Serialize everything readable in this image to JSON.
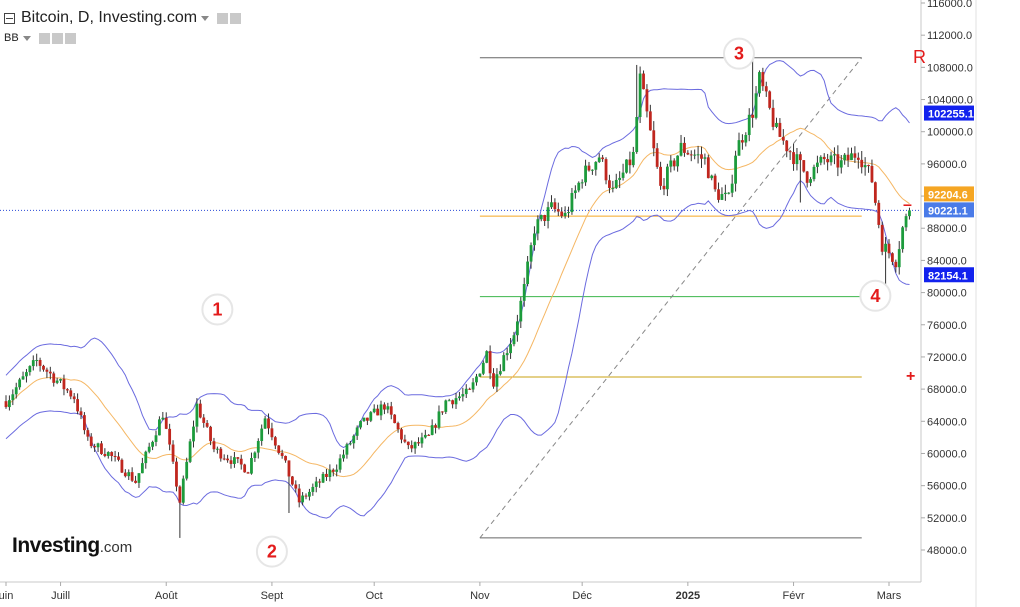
{
  "header": {
    "title": "Bitcoin, D, Investing.com",
    "indicator": "BB"
  },
  "logo": {
    "brand": "Investing",
    "suffix": ".com"
  },
  "chart_data": {
    "type": "candlestick",
    "y_axis": {
      "min": 45000,
      "max": 117000,
      "ticks": [
        48000,
        52000,
        56000,
        60000,
        64000,
        68000,
        72000,
        76000,
        80000,
        84000,
        88000,
        92000,
        96000,
        100000,
        104000,
        108000,
        112000,
        116000
      ],
      "tick_labels": [
        "48000.0",
        "52000.0",
        "56000.0",
        "60000.0",
        "64000.0",
        "68000.0",
        "72000.0",
        "76000.0",
        "80000.0",
        "84000.0",
        "88000.0",
        "92000.0",
        "96000.0",
        "100000.0",
        "104000.0",
        "108000.0",
        "112000.0",
        "116000.0"
      ]
    },
    "x_axis": {
      "labels": [
        {
          "date": "2024-06-15",
          "label": "uin"
        },
        {
          "date": "2024-07-01",
          "label": "Juill"
        },
        {
          "date": "2024-08-01",
          "label": "Août"
        },
        {
          "date": "2024-09-01",
          "label": "Sept"
        },
        {
          "date": "2024-10-01",
          "label": "Oct"
        },
        {
          "date": "2024-11-01",
          "label": "Nov"
        },
        {
          "date": "2024-12-01",
          "label": "Déc"
        },
        {
          "date": "2025-01-01",
          "label": "2025",
          "bold": true
        },
        {
          "date": "2025-02-01",
          "label": "Févr"
        },
        {
          "date": "2025-03-01",
          "label": "Mars"
        }
      ]
    },
    "price_anchors": [
      [
        "2024-06-15",
        66500
      ],
      [
        "2024-06-24",
        71500
      ],
      [
        "2024-07-05",
        67000
      ],
      [
        "2024-07-09",
        61500
      ],
      [
        "2024-07-15",
        60000
      ],
      [
        "2024-07-23",
        56500
      ],
      [
        "2024-07-31",
        65000
      ],
      [
        "2024-08-05",
        54000
      ],
      [
        "2024-08-10",
        66000
      ],
      [
        "2024-08-15",
        60500
      ],
      [
        "2024-08-25",
        58000
      ],
      [
        "2024-08-30",
        64500
      ],
      [
        "2024-09-05",
        58500
      ],
      [
        "2024-09-09",
        54000
      ],
      [
        "2024-09-20",
        58500
      ],
      [
        "2024-09-27",
        63500
      ],
      [
        "2024-10-04",
        66000
      ],
      [
        "2024-10-11",
        60500
      ],
      [
        "2024-10-17",
        62000
      ],
      [
        "2024-10-22",
        66500
      ],
      [
        "2024-10-29",
        67500
      ],
      [
        "2024-11-03",
        72500
      ],
      [
        "2024-11-05",
        69000
      ],
      [
        "2024-11-11",
        75000
      ],
      [
        "2024-11-14",
        80500
      ],
      [
        "2024-11-17",
        88000
      ],
      [
        "2024-11-22",
        90500
      ],
      [
        "2024-11-26",
        89500
      ],
      [
        "2024-12-01",
        94500
      ],
      [
        "2024-12-06",
        97000
      ],
      [
        "2024-12-10",
        92500
      ],
      [
        "2024-12-16",
        97000
      ],
      [
        "2024-12-18",
        106500
      ],
      [
        "2024-12-24",
        93000
      ],
      [
        "2024-12-30",
        98000
      ],
      [
        "2025-01-06",
        96500
      ],
      [
        "2025-01-09",
        92500
      ],
      [
        "2025-01-13",
        91500
      ],
      [
        "2025-01-15",
        97500
      ],
      [
        "2025-01-20",
        102500
      ],
      [
        "2025-01-22",
        106500
      ],
      [
        "2025-01-27",
        100000
      ],
      [
        "2025-02-01",
        97000
      ],
      [
        "2025-02-05",
        94500
      ],
      [
        "2025-02-10",
        96500
      ],
      [
        "2025-02-15",
        96000
      ],
      [
        "2025-02-20",
        97500
      ],
      [
        "2025-02-24",
        94000
      ],
      [
        "2025-02-27",
        86000
      ],
      [
        "2025-03-03",
        84000
      ],
      [
        "2025-03-05",
        88000
      ],
      [
        "2025-03-07",
        90221
      ]
    ],
    "bollinger_bands": {
      "period": 20,
      "std": 2
    },
    "last_price": 90221.1,
    "badges": [
      {
        "value": "102255.1",
        "color": "#1222ee"
      },
      {
        "value": "92204.6",
        "color": "#f5a623"
      },
      {
        "value": "90221.1",
        "color": "#4a7be8"
      },
      {
        "value": "82154.1",
        "color": "#1222ee"
      }
    ],
    "horizontal_levels": [
      {
        "y": 109200,
        "from": "2024-11-01",
        "to": "2025-02-21",
        "color": "#666666"
      },
      {
        "y": 89500,
        "from": "2024-11-01",
        "to": "2025-02-21",
        "color": "#f5a623"
      },
      {
        "y": 79500,
        "from": "2024-11-01",
        "to": "2025-02-21",
        "color": "#3bb64b"
      },
      {
        "y": 69500,
        "from": "2024-11-01",
        "to": "2025-02-21",
        "color": "#c8a010"
      },
      {
        "y": 49500,
        "from": "2024-11-01",
        "to": "2025-02-21",
        "color": "#666666"
      }
    ],
    "trend_line": {
      "from": [
        "2024-11-01",
        49500
      ],
      "to": [
        "2025-02-21",
        109200
      ]
    },
    "annotations": [
      {
        "label": "1",
        "date": "2024-08-16",
        "y": 77900
      },
      {
        "label": "2",
        "date": "2024-09-01",
        "y": 47800
      },
      {
        "label": "3",
        "date": "2025-01-16",
        "y": 109700
      },
      {
        "label": "4",
        "date": "2025-02-25",
        "y": 79600
      }
    ],
    "markers": {
      "right_top": "R",
      "plus": "+",
      "minus": "–"
    }
  }
}
